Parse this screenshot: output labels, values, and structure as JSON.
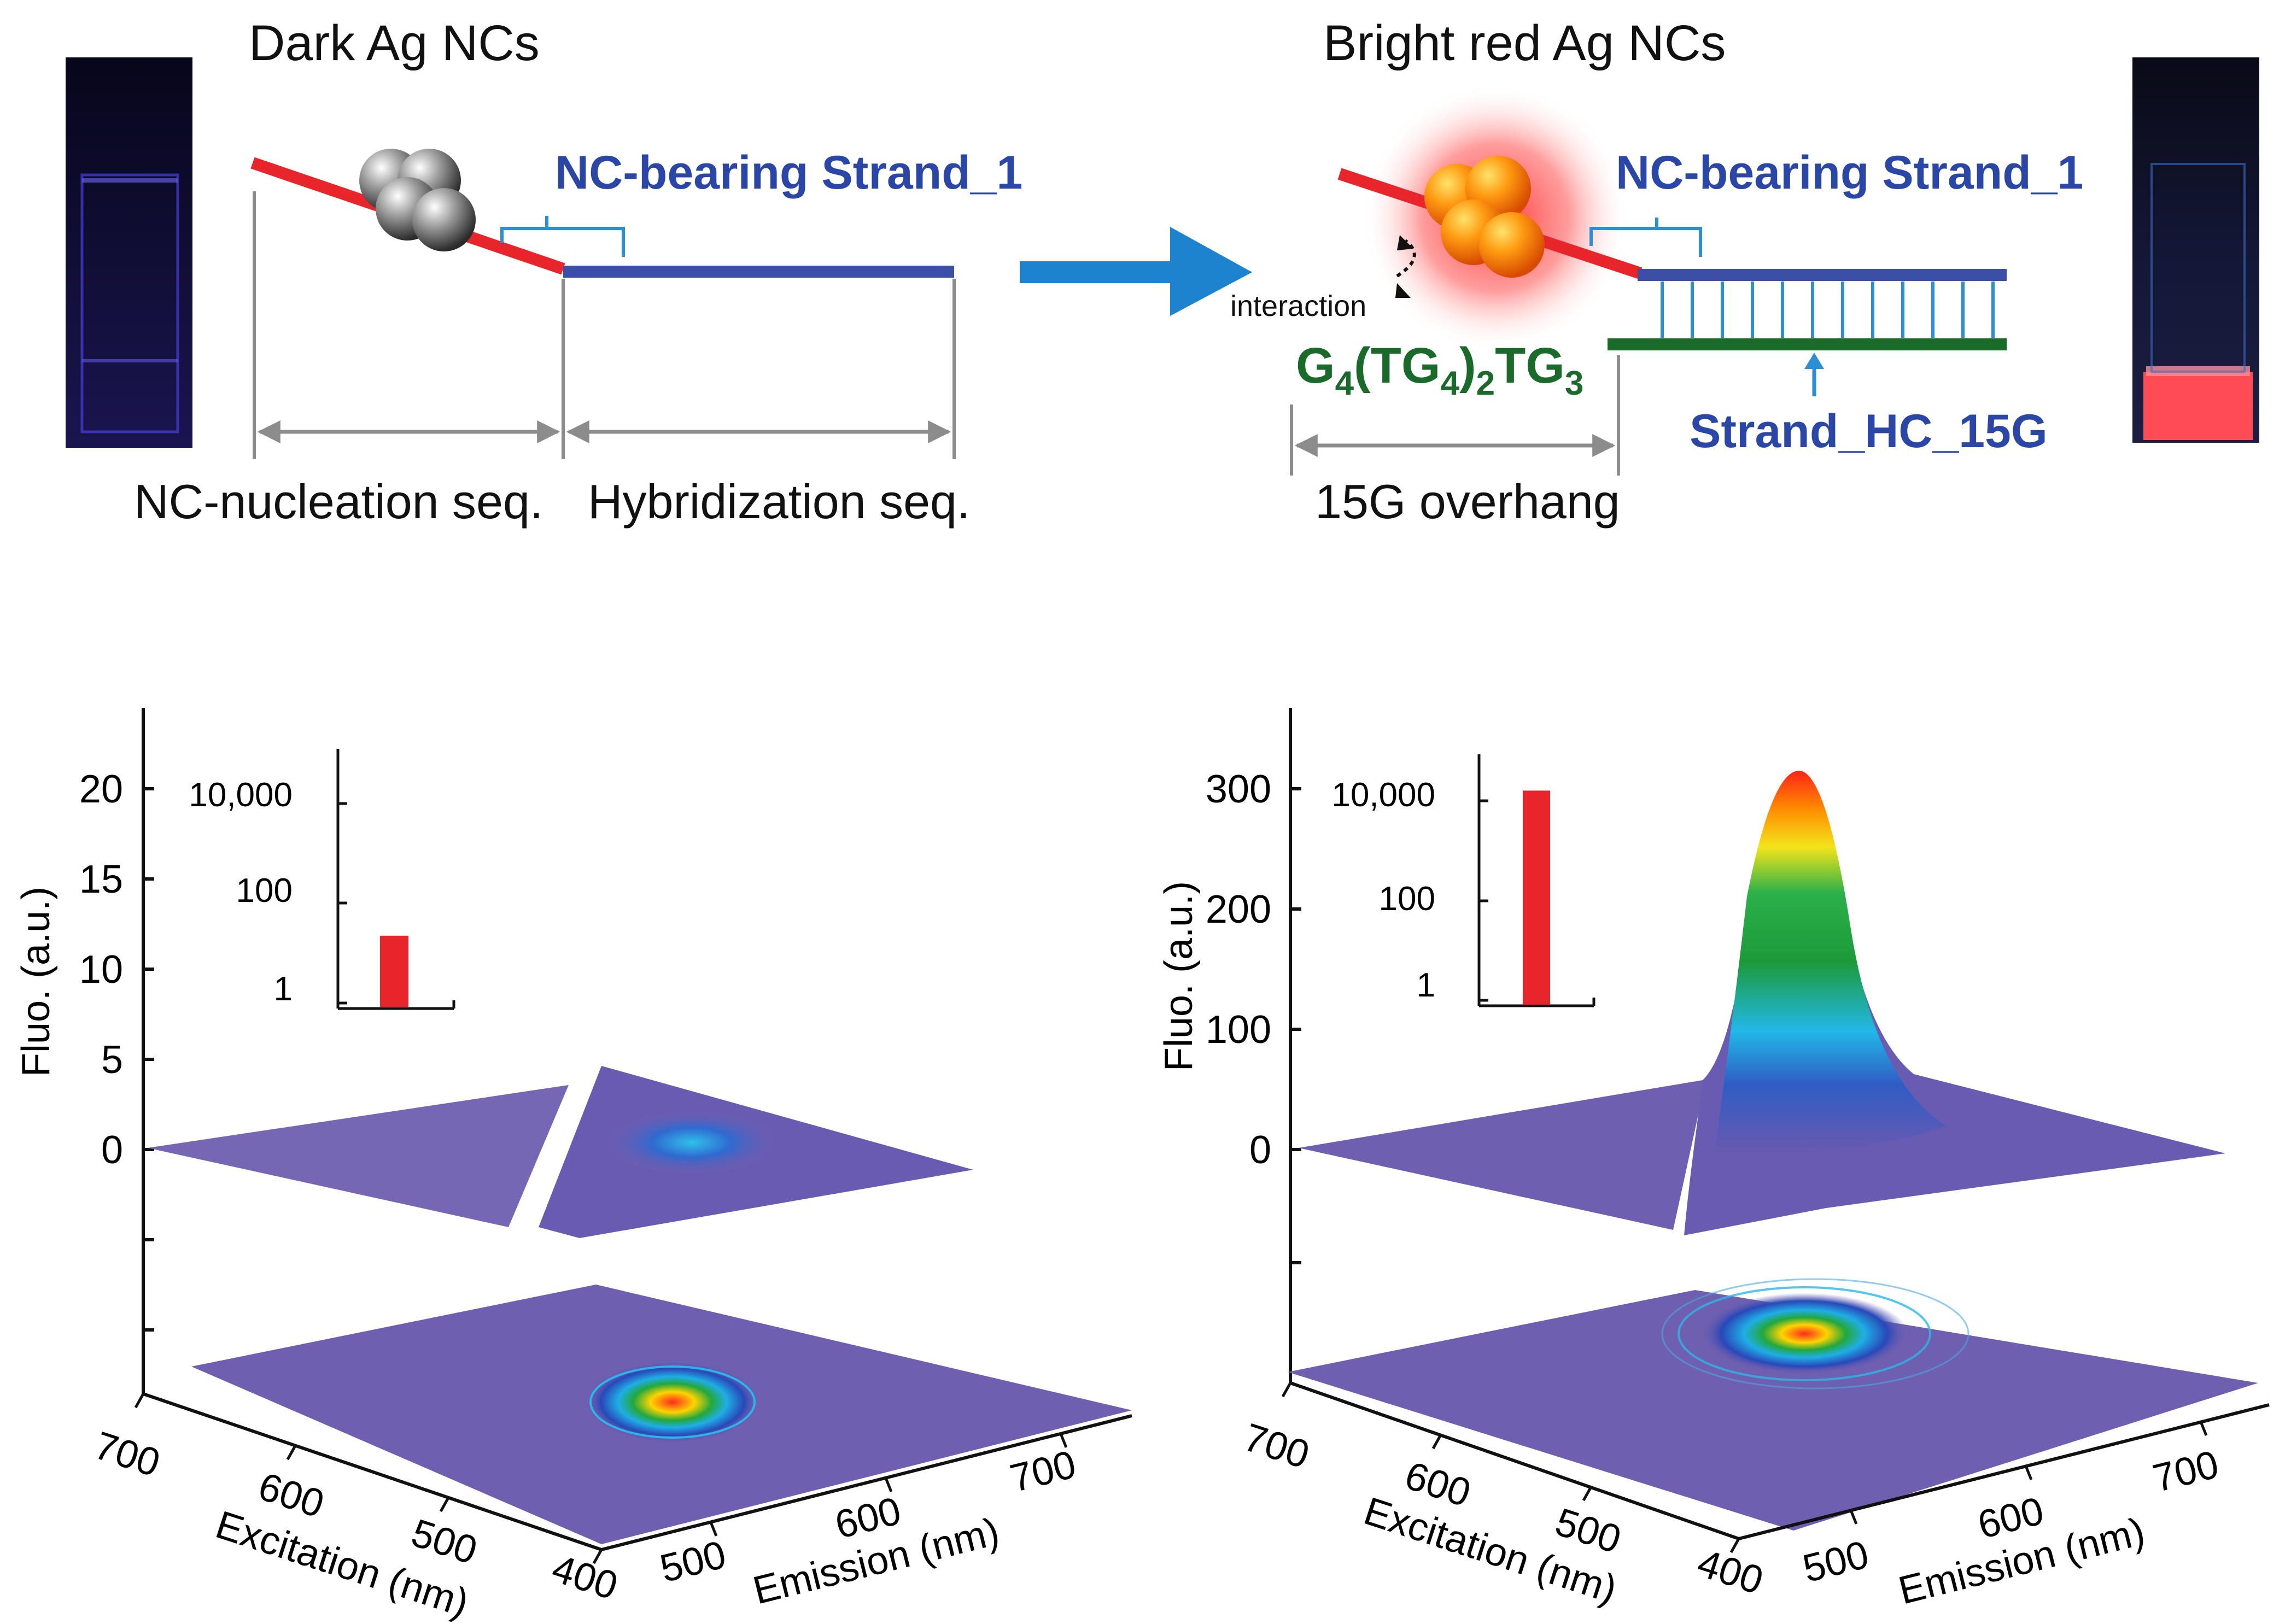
{
  "top": {
    "left": {
      "title": "Dark Ag NCs",
      "strand_label": "NC-bearing Strand_1",
      "seg1_label": "NC-nucleation seq.",
      "seg2_label": "Hybridization seq."
    },
    "right": {
      "title": "Bright red Ag NCs",
      "strand_label": "NC-bearing Strand_1",
      "interaction_label": "interaction",
      "overhang_seq": {
        "a": "G",
        "a_sub": "4",
        "b": "(TG",
        "b_sub": "4",
        "c": ")",
        "c_sub": "2",
        "d": "TG",
        "d_sub": "3"
      },
      "overhang_label": "15G overhang",
      "complement_label": "Strand_HC_15G"
    }
  },
  "plots": {
    "left": {
      "y_axis_label": "Fluo. (a.u.)",
      "y_ticks": [
        "20",
        "15",
        "10",
        "5",
        "0"
      ],
      "inset_ticks": [
        "10,000",
        "100",
        "1"
      ],
      "inset_value_log10": 1.4,
      "x_label": "Excitation (nm)",
      "x_ticks": [
        "700",
        "600",
        "500",
        "400"
      ],
      "e_label": "Emission (nm)",
      "e_ticks": [
        "500",
        "600",
        "700"
      ]
    },
    "right": {
      "y_axis_label": "Fluo. (a.u.)",
      "y_ticks": [
        "300",
        "200",
        "100",
        "0"
      ],
      "inset_ticks": [
        "10,000",
        "100",
        "1"
      ],
      "inset_value_log10": 4.2,
      "x_label": "Excitation (nm)",
      "x_ticks": [
        "700",
        "600",
        "500",
        "400"
      ],
      "e_label": "Emission (nm)",
      "e_ticks": [
        "500",
        "600",
        "700"
      ]
    }
  },
  "colors": {
    "red_strand": "#e8252b",
    "blue_strand": "#3a4fa5",
    "green_strand": "#1a6b2a",
    "label_blue": "#2a47a8",
    "bracket_blue": "#2b8fd6",
    "arrow_blue": "#1d83cf",
    "surface": "#6f5fb0",
    "inset_bar": "#e8252b"
  }
}
